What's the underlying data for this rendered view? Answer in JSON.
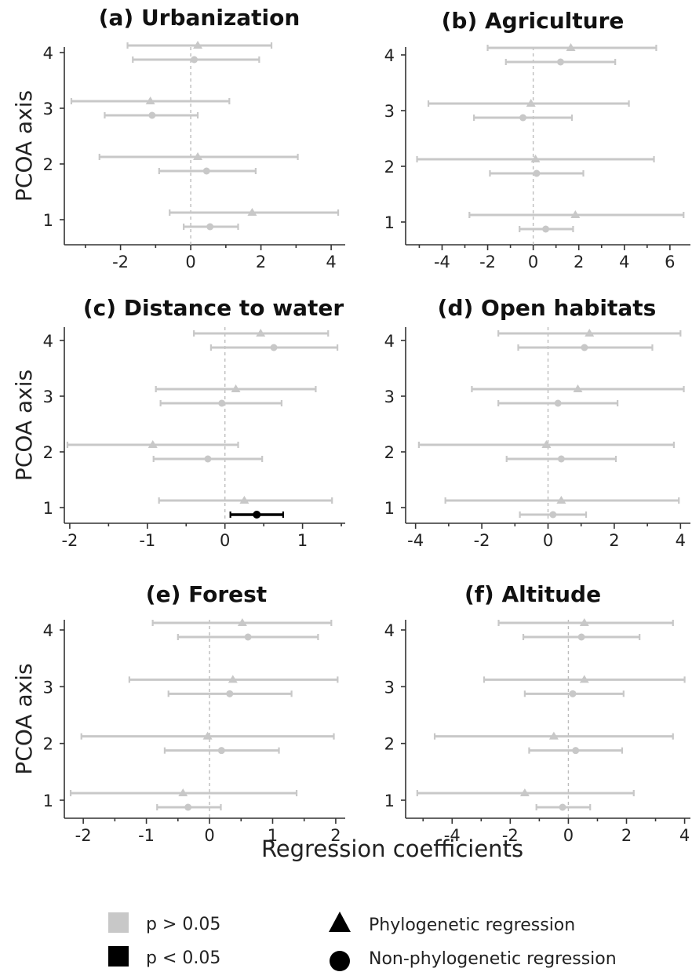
{
  "figure": {
    "y_axis_title": "PCOA axis",
    "x_axis_title": "Regression coefficients",
    "colors": {
      "nonsignificant": "#c8c8c8",
      "significant": "#000000",
      "zero_line": "#bdbdbd"
    }
  },
  "legend": {
    "significance": [
      {
        "label": "p > 0.05",
        "color": "#c8c8c8"
      },
      {
        "label": "p < 0.05",
        "color": "#000000"
      }
    ],
    "model": [
      {
        "label": "Phylogenetic regression",
        "shape": "triangle"
      },
      {
        "label": "Non-phylogenetic regression",
        "shape": "circle"
      }
    ]
  },
  "chart_data": [
    {
      "type": "errorbar",
      "title": "(a) Urbanization",
      "xlim": [
        -3.6,
        4.4
      ],
      "xticks": [
        -2,
        0,
        2,
        4
      ],
      "xtick_labels": [
        "-2",
        "0",
        "2",
        "4"
      ],
      "ylabel": "PCOA axis",
      "y_categories": [
        "1",
        "2",
        "3",
        "4"
      ],
      "series": [
        {
          "name": "Phylogenetic regression",
          "marker": "triangle",
          "points": [
            {
              "axis": 1,
              "estimate": 1.75,
              "lower": -0.6,
              "upper": 4.2,
              "significant": false
            },
            {
              "axis": 2,
              "estimate": 0.2,
              "lower": -2.6,
              "upper": 3.05,
              "significant": false
            },
            {
              "axis": 3,
              "estimate": -1.15,
              "lower": -3.4,
              "upper": 1.1,
              "significant": false
            },
            {
              "axis": 4,
              "estimate": 0.2,
              "lower": -1.8,
              "upper": 2.3,
              "significant": false
            }
          ]
        },
        {
          "name": "Non-phylogenetic regression",
          "marker": "circle",
          "points": [
            {
              "axis": 1,
              "estimate": 0.55,
              "lower": -0.2,
              "upper": 1.35,
              "significant": false
            },
            {
              "axis": 2,
              "estimate": 0.45,
              "lower": -0.9,
              "upper": 1.85,
              "significant": false
            },
            {
              "axis": 3,
              "estimate": -1.1,
              "lower": -2.45,
              "upper": 0.2,
              "significant": false
            },
            {
              "axis": 4,
              "estimate": 0.1,
              "lower": -1.65,
              "upper": 1.95,
              "significant": false
            }
          ]
        }
      ]
    },
    {
      "type": "errorbar",
      "title": "(b) Agriculture",
      "xlim": [
        -5.6,
        6.9
      ],
      "xticks": [
        -4,
        -2,
        0,
        2,
        4,
        6
      ],
      "xtick_labels": [
        "-4",
        "-2",
        "0",
        "2",
        "4",
        "6"
      ],
      "ylabel": "",
      "y_categories": [
        "1",
        "2",
        "3",
        "4"
      ],
      "series": [
        {
          "name": "Phylogenetic regression",
          "marker": "triangle",
          "points": [
            {
              "axis": 1,
              "estimate": 1.85,
              "lower": -2.8,
              "upper": 6.6,
              "significant": false
            },
            {
              "axis": 2,
              "estimate": 0.1,
              "lower": -5.1,
              "upper": 5.3,
              "significant": false
            },
            {
              "axis": 3,
              "estimate": -0.1,
              "lower": -4.6,
              "upper": 4.2,
              "significant": false
            },
            {
              "axis": 4,
              "estimate": 1.65,
              "lower": -2.0,
              "upper": 5.4,
              "significant": false
            }
          ]
        },
        {
          "name": "Non-phylogenetic regression",
          "marker": "circle",
          "points": [
            {
              "axis": 1,
              "estimate": 0.55,
              "lower": -0.6,
              "upper": 1.75,
              "significant": false
            },
            {
              "axis": 2,
              "estimate": 0.15,
              "lower": -1.9,
              "upper": 2.2,
              "significant": false
            },
            {
              "axis": 3,
              "estimate": -0.45,
              "lower": -2.6,
              "upper": 1.7,
              "significant": false
            },
            {
              "axis": 4,
              "estimate": 1.2,
              "lower": -1.2,
              "upper": 3.6,
              "significant": false
            }
          ]
        }
      ]
    },
    {
      "type": "errorbar",
      "title": "(c) Distance to water",
      "xlim": [
        -2.07,
        1.55
      ],
      "xticks": [
        -2,
        -1,
        0,
        1
      ],
      "xtick_labels": [
        "-2",
        "-1",
        "0",
        "1"
      ],
      "ylabel": "PCOA axis",
      "y_categories": [
        "1",
        "2",
        "3",
        "4"
      ],
      "series": [
        {
          "name": "Phylogenetic regression",
          "marker": "triangle",
          "points": [
            {
              "axis": 1,
              "estimate": 0.25,
              "lower": -0.85,
              "upper": 1.38,
              "significant": false
            },
            {
              "axis": 2,
              "estimate": -0.93,
              "lower": -2.03,
              "upper": 0.17,
              "significant": false
            },
            {
              "axis": 3,
              "estimate": 0.14,
              "lower": -0.89,
              "upper": 1.17,
              "significant": false
            },
            {
              "axis": 4,
              "estimate": 0.46,
              "lower": -0.4,
              "upper": 1.33,
              "significant": false
            }
          ]
        },
        {
          "name": "Non-phylogenetic regression",
          "marker": "circle",
          "points": [
            {
              "axis": 1,
              "estimate": 0.41,
              "lower": 0.07,
              "upper": 0.75,
              "significant": true
            },
            {
              "axis": 2,
              "estimate": -0.22,
              "lower": -0.92,
              "upper": 0.48,
              "significant": false
            },
            {
              "axis": 3,
              "estimate": -0.04,
              "lower": -0.83,
              "upper": 0.73,
              "significant": false
            },
            {
              "axis": 4,
              "estimate": 0.63,
              "lower": -0.18,
              "upper": 1.45,
              "significant": false
            }
          ]
        }
      ]
    },
    {
      "type": "errorbar",
      "title": "(d) Open habitats",
      "xlim": [
        -4.3,
        4.3
      ],
      "xticks": [
        -4,
        -2,
        0,
        2,
        4
      ],
      "xtick_labels": [
        "-4",
        "-2",
        "0",
        "2",
        "4"
      ],
      "ylabel": "",
      "y_categories": [
        "1",
        "2",
        "3",
        "4"
      ],
      "series": [
        {
          "name": "Phylogenetic regression",
          "marker": "triangle",
          "points": [
            {
              "axis": 1,
              "estimate": 0.4,
              "lower": -3.1,
              "upper": 3.95,
              "significant": false
            },
            {
              "axis": 2,
              "estimate": -0.05,
              "lower": -3.9,
              "upper": 3.8,
              "significant": false
            },
            {
              "axis": 3,
              "estimate": 0.9,
              "lower": -2.3,
              "upper": 4.1,
              "significant": false
            },
            {
              "axis": 4,
              "estimate": 1.25,
              "lower": -1.5,
              "upper": 4.0,
              "significant": false
            }
          ]
        },
        {
          "name": "Non-phylogenetic regression",
          "marker": "circle",
          "points": [
            {
              "axis": 1,
              "estimate": 0.15,
              "lower": -0.85,
              "upper": 1.15,
              "significant": false
            },
            {
              "axis": 2,
              "estimate": 0.4,
              "lower": -1.25,
              "upper": 2.05,
              "significant": false
            },
            {
              "axis": 3,
              "estimate": 0.3,
              "lower": -1.5,
              "upper": 2.1,
              "significant": false
            },
            {
              "axis": 4,
              "estimate": 1.1,
              "lower": -0.9,
              "upper": 3.15,
              "significant": false
            }
          ]
        }
      ]
    },
    {
      "type": "errorbar",
      "title": "(e) Forest",
      "xlim": [
        -2.3,
        2.15
      ],
      "xticks": [
        -2,
        -1,
        0,
        1,
        2
      ],
      "xtick_labels": [
        "-2",
        "-1",
        "0",
        "1",
        "2"
      ],
      "ylabel": "PCOA axis",
      "y_categories": [
        "1",
        "2",
        "3",
        "4"
      ],
      "series": [
        {
          "name": "Phylogenetic regression",
          "marker": "triangle",
          "points": [
            {
              "axis": 1,
              "estimate": -0.42,
              "lower": -2.2,
              "upper": 1.38,
              "significant": false
            },
            {
              "axis": 2,
              "estimate": -0.03,
              "lower": -2.03,
              "upper": 1.97,
              "significant": false
            },
            {
              "axis": 3,
              "estimate": 0.37,
              "lower": -1.27,
              "upper": 2.03,
              "significant": false
            },
            {
              "axis": 4,
              "estimate": 0.52,
              "lower": -0.9,
              "upper": 1.93,
              "significant": false
            }
          ]
        },
        {
          "name": "Non-phylogenetic regression",
          "marker": "circle",
          "points": [
            {
              "axis": 1,
              "estimate": -0.34,
              "lower": -0.83,
              "upper": 0.18,
              "significant": false
            },
            {
              "axis": 2,
              "estimate": 0.19,
              "lower": -0.71,
              "upper": 1.1,
              "significant": false
            },
            {
              "axis": 3,
              "estimate": 0.32,
              "lower": -0.65,
              "upper": 1.3,
              "significant": false
            },
            {
              "axis": 4,
              "estimate": 0.61,
              "lower": -0.5,
              "upper": 1.72,
              "significant": false
            }
          ]
        }
      ]
    },
    {
      "type": "errorbar",
      "title": "(f) Altitude",
      "xlim": [
        -5.6,
        4.2
      ],
      "xticks": [
        -4,
        -2,
        0,
        2,
        4
      ],
      "xtick_labels": [
        "-4",
        "-2",
        "0",
        "2",
        "4"
      ],
      "ylabel": "",
      "y_categories": [
        "1",
        "2",
        "3",
        "4"
      ],
      "series": [
        {
          "name": "Phylogenetic regression",
          "marker": "triangle",
          "points": [
            {
              "axis": 1,
              "estimate": -1.5,
              "lower": -5.2,
              "upper": 2.25,
              "significant": false
            },
            {
              "axis": 2,
              "estimate": -0.5,
              "lower": -4.6,
              "upper": 3.6,
              "significant": false
            },
            {
              "axis": 3,
              "estimate": 0.55,
              "lower": -2.9,
              "upper": 4.0,
              "significant": false
            },
            {
              "axis": 4,
              "estimate": 0.55,
              "lower": -2.4,
              "upper": 3.6,
              "significant": false
            }
          ]
        },
        {
          "name": "Non-phylogenetic regression",
          "marker": "circle",
          "points": [
            {
              "axis": 1,
              "estimate": -0.2,
              "lower": -1.1,
              "upper": 0.75,
              "significant": false
            },
            {
              "axis": 2,
              "estimate": 0.25,
              "lower": -1.35,
              "upper": 1.85,
              "significant": false
            },
            {
              "axis": 3,
              "estimate": 0.15,
              "lower": -1.5,
              "upper": 1.9,
              "significant": false
            },
            {
              "axis": 4,
              "estimate": 0.45,
              "lower": -1.55,
              "upper": 2.45,
              "significant": false
            }
          ]
        }
      ]
    }
  ]
}
